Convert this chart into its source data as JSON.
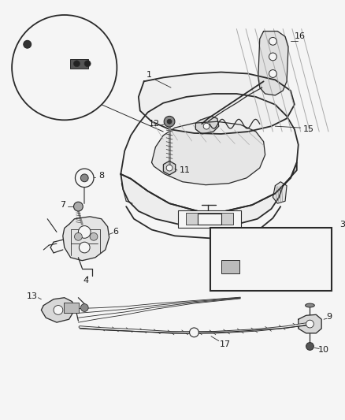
{
  "bg_color": "#f5f5f5",
  "line_color": "#2a2a2a",
  "label_color": "#1a1a1a",
  "fig_width": 4.38,
  "fig_height": 5.33,
  "dpi": 100
}
